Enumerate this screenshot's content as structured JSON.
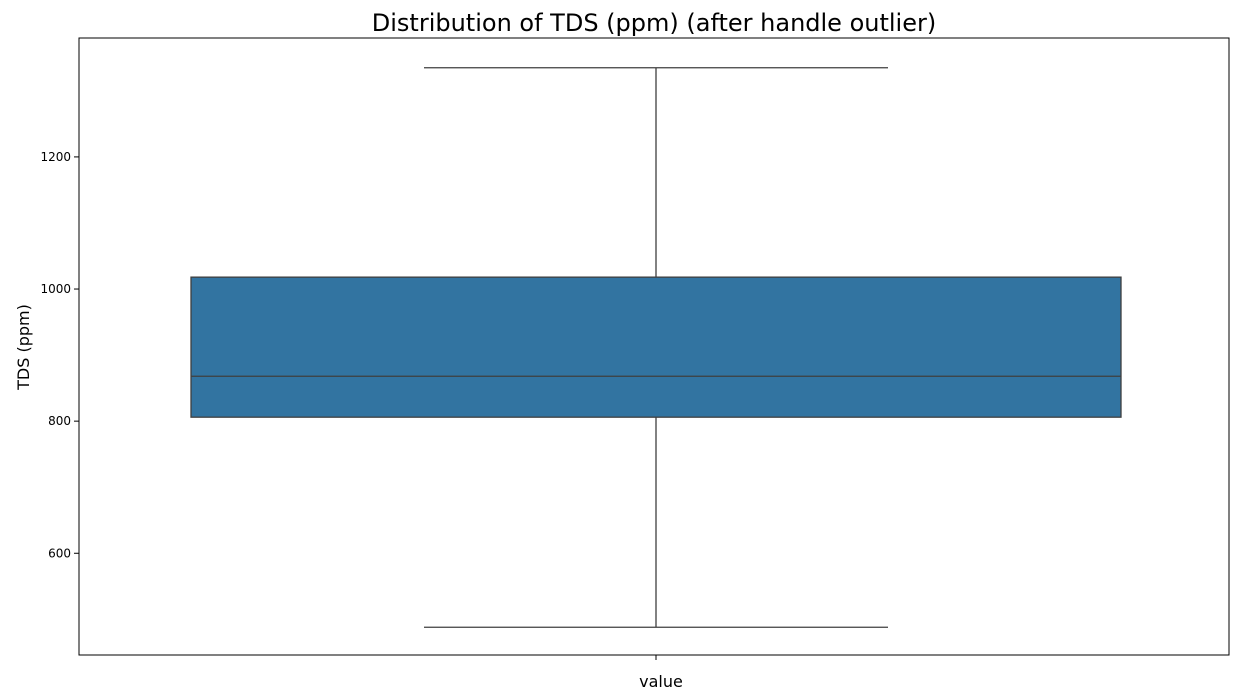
{
  "chart_data": {
    "type": "box",
    "title": "Distribution of TDS (ppm) (after handle outlier)",
    "xlabel": "value",
    "ylabel": "TDS (ppm)",
    "ylim": [
      446,
      1380
    ],
    "yticks": [
      600,
      800,
      1000,
      1200
    ],
    "grid": false,
    "legend": "none",
    "box_color": "#3274a1",
    "line_color": "#3f3f3f",
    "boxes": [
      {
        "whisker_low": 488,
        "q1": 806,
        "median": 868,
        "q3": 1018,
        "whisker_high": 1335
      }
    ]
  }
}
